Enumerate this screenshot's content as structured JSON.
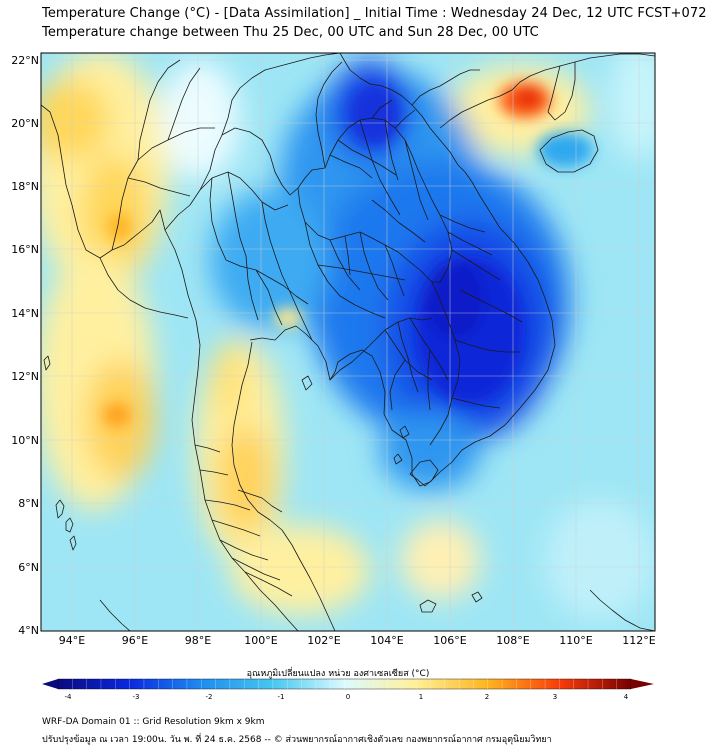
{
  "header": {
    "title_line1": "Temperature Change (°C) - [Data Assimilation] _ Initial Time : Wednesday 24 Dec, 12 UTC FCST+072",
    "title_line2": "Temperature change between Thu 25 Dec, 00 UTC and Sun 28 Dec, 00 UTC"
  },
  "map": {
    "lat_labels": [
      "22°N",
      "20°N",
      "18°N",
      "16°N",
      "14°N",
      "12°N",
      "10°N",
      "8°N",
      "6°N",
      "4°N"
    ],
    "lon_labels": [
      "94°E",
      "96°E",
      "98°E",
      "100°E",
      "102°E",
      "104°E",
      "106°E",
      "108°E",
      "110°E",
      "112°E"
    ],
    "lat_values": [
      22,
      20,
      18,
      16,
      14,
      12,
      10,
      8,
      6,
      4
    ],
    "lon_values": [
      94,
      96,
      98,
      100,
      102,
      104,
      106,
      108,
      110,
      112
    ],
    "extent": {
      "lon_min": 93,
      "lon_max": 112.5,
      "lat_min": 4,
      "lat_max": 22.2
    },
    "gridline_color": "#cfcfcf",
    "coastline_color": "#1a1a1a"
  },
  "colorbar": {
    "label": "อุณหภูมิเปลี่ยนแปลง หน่วย องศาเซลเซียส (°C)",
    "min": -4,
    "max": 4,
    "tick_labels": [
      "-4",
      "-3",
      "-2",
      "-1",
      "0",
      "1",
      "2",
      "3",
      "4"
    ],
    "tick_values": [
      -4,
      -3,
      -2,
      -1,
      0,
      1,
      2,
      3,
      4
    ],
    "colors": {
      "c_m4": "#0a0a80",
      "c_m3": "#0a28e0",
      "c_m2": "#1e8cf0",
      "c_m1": "#46c8f0",
      "c_0": "#dcfaff",
      "c_p1": "#fff096",
      "c_p2": "#ffb41e",
      "c_p3": "#fa3c0a",
      "c_p4": "#780000"
    }
  },
  "footer": {
    "line1": "WRF-DA Domain 01 :: Grid Resolution 9km x 9km",
    "line2": "ปรับปรุงข้อมูล ณ เวลา 19:00น. วัน พ. ที่ 24 ธ.ค. 2568 -- © ส่วนพยากรณ์อากาศเชิงตัวเลข กองพยากรณ์อากาศ กรมอุตุนิยมวิทยา"
  }
}
